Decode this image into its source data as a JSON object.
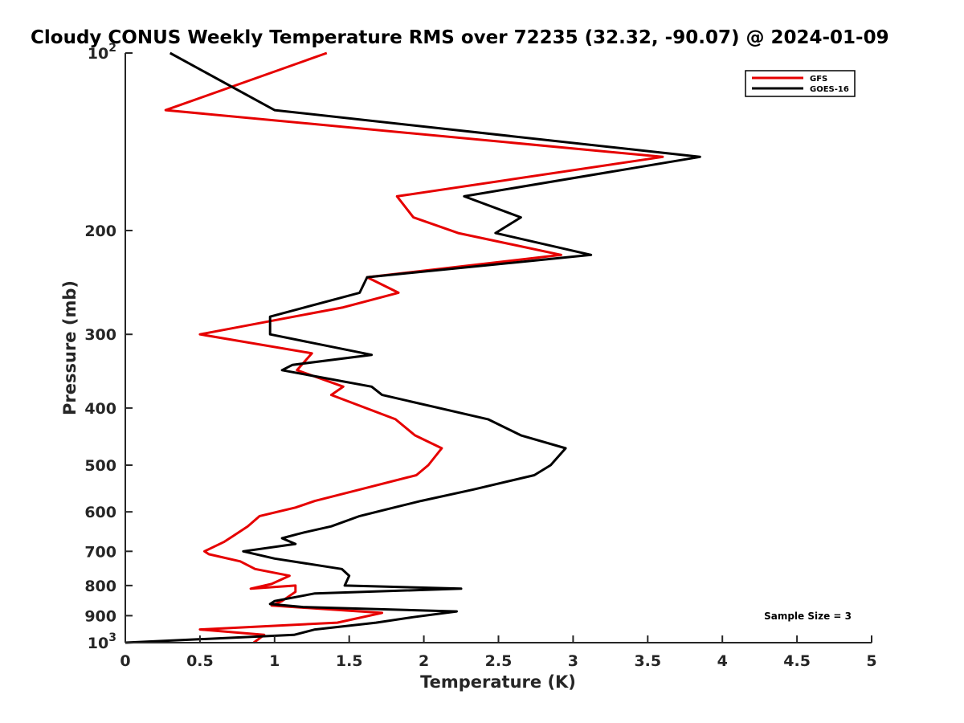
{
  "chart_data": {
    "type": "line",
    "title": "Cloudy CONUS Weekly Temperature RMS over 72235 (32.32, -90.07) @ 2024-01-09",
    "xlabel": "Temperature (K)",
    "ylabel": "Pressure (mb)",
    "xlim": [
      0,
      5
    ],
    "ylim": [
      100,
      1000
    ],
    "yscale": "log",
    "yreversed": true,
    "grid": false,
    "legend_position": "top-right",
    "x_ticks": [
      0,
      0.5,
      1,
      1.5,
      2,
      2.5,
      3,
      3.5,
      4,
      4.5,
      5
    ],
    "x_tick_labels": [
      "0",
      "0.5",
      "1",
      "1.5",
      "2",
      "2.5",
      "3",
      "3.5",
      "4",
      "4.5",
      "5"
    ],
    "y_ticks": [
      {
        "value": 100,
        "base": "10",
        "exp": "2"
      },
      {
        "value": 200,
        "label": "200"
      },
      {
        "value": 300,
        "label": "300"
      },
      {
        "value": 400,
        "label": "400"
      },
      {
        "value": 500,
        "label": "500"
      },
      {
        "value": 600,
        "label": "600"
      },
      {
        "value": 700,
        "label": "700"
      },
      {
        "value": 800,
        "label": "800"
      },
      {
        "value": 900,
        "label": "900"
      },
      {
        "value": 1000,
        "base": "10",
        "exp": "3"
      }
    ],
    "series": [
      {
        "name": "GFS",
        "color": "#e60000",
        "points": [
          [
            1.35,
            100
          ],
          [
            0.27,
            125
          ],
          [
            3.6,
            150
          ],
          [
            1.82,
            175
          ],
          [
            1.93,
            190
          ],
          [
            2.23,
            202
          ],
          [
            2.92,
            220
          ],
          [
            1.62,
            240
          ],
          [
            1.83,
            255
          ],
          [
            1.46,
            270
          ],
          [
            0.5,
            300
          ],
          [
            1.25,
            323
          ],
          [
            1.15,
            345
          ],
          [
            1.46,
            368
          ],
          [
            1.38,
            380
          ],
          [
            1.81,
            418
          ],
          [
            1.94,
            445
          ],
          [
            2.12,
            468
          ],
          [
            2.03,
            500
          ],
          [
            1.95,
            520
          ],
          [
            1.57,
            550
          ],
          [
            1.27,
            575
          ],
          [
            1.14,
            590
          ],
          [
            0.9,
            610
          ],
          [
            0.82,
            635
          ],
          [
            0.72,
            660
          ],
          [
            0.66,
            675
          ],
          [
            0.53,
            700
          ],
          [
            0.56,
            708
          ],
          [
            0.77,
            728
          ],
          [
            0.87,
            750
          ],
          [
            1.1,
            770
          ],
          [
            0.98,
            795
          ],
          [
            0.84,
            810
          ],
          [
            1.14,
            800
          ],
          [
            1.14,
            820
          ],
          [
            1.05,
            850
          ],
          [
            0.98,
            865
          ],
          [
            1.72,
            890
          ],
          [
            1.42,
            925
          ],
          [
            0.5,
            950
          ],
          [
            0.93,
            970
          ],
          [
            0.86,
            1000
          ]
        ]
      },
      {
        "name": "GOES-16",
        "color": "#000000",
        "points": [
          [
            0.3,
            100
          ],
          [
            1.0,
            125
          ],
          [
            3.85,
            150
          ],
          [
            2.27,
            175
          ],
          [
            2.65,
            190
          ],
          [
            2.48,
            202
          ],
          [
            3.12,
            220
          ],
          [
            1.62,
            240
          ],
          [
            1.57,
            255
          ],
          [
            0.97,
            280
          ],
          [
            0.97,
            300
          ],
          [
            1.65,
            325
          ],
          [
            1.12,
            338
          ],
          [
            1.05,
            345
          ],
          [
            1.65,
            368
          ],
          [
            1.72,
            380
          ],
          [
            2.43,
            418
          ],
          [
            2.65,
            445
          ],
          [
            2.95,
            468
          ],
          [
            2.85,
            500
          ],
          [
            2.74,
            520
          ],
          [
            2.33,
            550
          ],
          [
            1.98,
            575
          ],
          [
            1.8,
            590
          ],
          [
            1.57,
            610
          ],
          [
            1.38,
            635
          ],
          [
            1.2,
            650
          ],
          [
            1.15,
            655
          ],
          [
            1.05,
            665
          ],
          [
            1.14,
            680
          ],
          [
            0.79,
            700
          ],
          [
            1.0,
            720
          ],
          [
            1.45,
            750
          ],
          [
            1.5,
            770
          ],
          [
            1.47,
            800
          ],
          [
            2.25,
            810
          ],
          [
            1.27,
            825
          ],
          [
            1.0,
            850
          ],
          [
            0.97,
            860
          ],
          [
            1.19,
            870
          ],
          [
            2.22,
            885
          ],
          [
            1.93,
            905
          ],
          [
            1.68,
            925
          ],
          [
            1.27,
            950
          ],
          [
            1.13,
            970
          ],
          [
            0.0,
            1000
          ]
        ]
      }
    ],
    "annotation": "Sample Size = 3"
  }
}
